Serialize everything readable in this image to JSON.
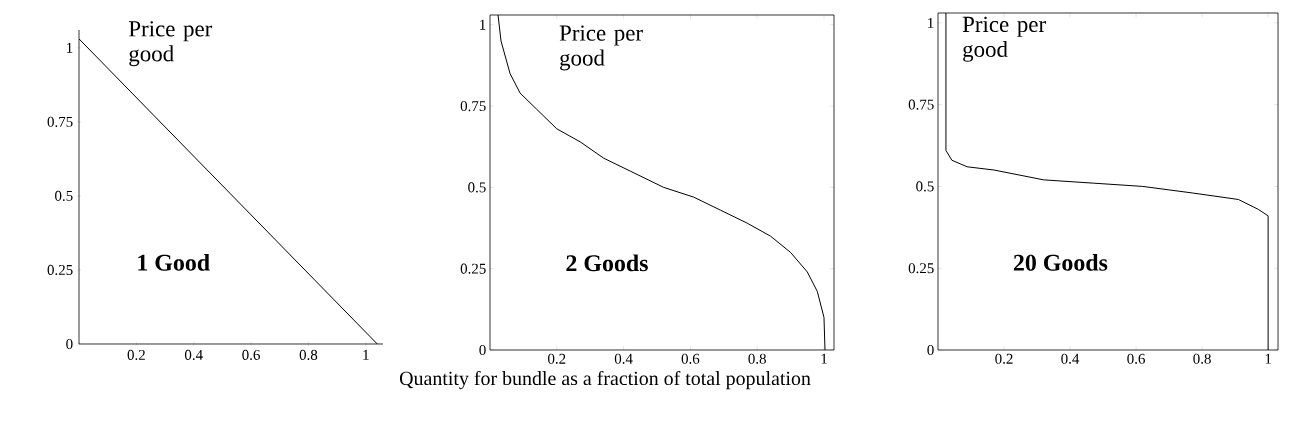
{
  "chart_data": [
    {
      "type": "line",
      "ylabel": "Price per good",
      "annotations": [
        "1 Good"
      ],
      "xlim": [
        0,
        1.06
      ],
      "ylim": [
        0,
        1.06
      ],
      "xticks": [
        0.2,
        0.4,
        0.6,
        0.8,
        1
      ],
      "yticks": [
        0,
        0.25,
        0.5,
        0.75,
        1
      ],
      "series": [
        {
          "color": "#000000",
          "x": [
            0,
            1.04
          ],
          "values": [
            1.03,
            0
          ]
        }
      ],
      "grid": false,
      "marker": "none",
      "line_style": "solid"
    },
    {
      "type": "line",
      "ylabel": "Price per good",
      "xlabel": "Quantity for bundle as a fraction of total population",
      "annotations": [
        "2 Goods"
      ],
      "xlim": [
        0,
        1.03
      ],
      "ylim": [
        0,
        1.03
      ],
      "xticks": [
        0.2,
        0.4,
        0.6,
        0.8,
        1
      ],
      "yticks": [
        0,
        0.25,
        0.5,
        0.75,
        1
      ],
      "series": [
        {
          "color": "#000000",
          "x": [
            0.024,
            0.033,
            0.06,
            0.09,
            0.14,
            0.2,
            0.27,
            0.34,
            0.42,
            0.52,
            0.61,
            0.69,
            0.77,
            0.84,
            0.9,
            0.95,
            0.98,
            1.0,
            1.003
          ],
          "values": [
            1.03,
            0.95,
            0.85,
            0.79,
            0.74,
            0.68,
            0.64,
            0.59,
            0.55,
            0.5,
            0.47,
            0.43,
            0.39,
            0.35,
            0.3,
            0.24,
            0.18,
            0.1,
            0
          ]
        }
      ],
      "grid": false,
      "marker": "none",
      "line_style": "solid"
    },
    {
      "type": "line",
      "ylabel": "Price per good",
      "annotations": [
        "20 Goods"
      ],
      "xlim": [
        0,
        1.03
      ],
      "ylim": [
        0,
        1.03
      ],
      "xticks": [
        0.2,
        0.4,
        0.6,
        0.8,
        1
      ],
      "yticks": [
        0,
        0.25,
        0.5,
        0.75,
        1
      ],
      "series": [
        {
          "color": "#000000",
          "x": [
            0.024,
            0.024,
            0.042,
            0.088,
            0.17,
            0.32,
            0.47,
            0.62,
            0.77,
            0.91,
            0.97,
            1.0,
            1.0
          ],
          "values": [
            1.03,
            0.61,
            0.58,
            0.56,
            0.55,
            0.52,
            0.51,
            0.5,
            0.48,
            0.46,
            0.43,
            0.41,
            0
          ]
        }
      ],
      "grid": false,
      "marker": "none",
      "line_style": "solid"
    }
  ]
}
